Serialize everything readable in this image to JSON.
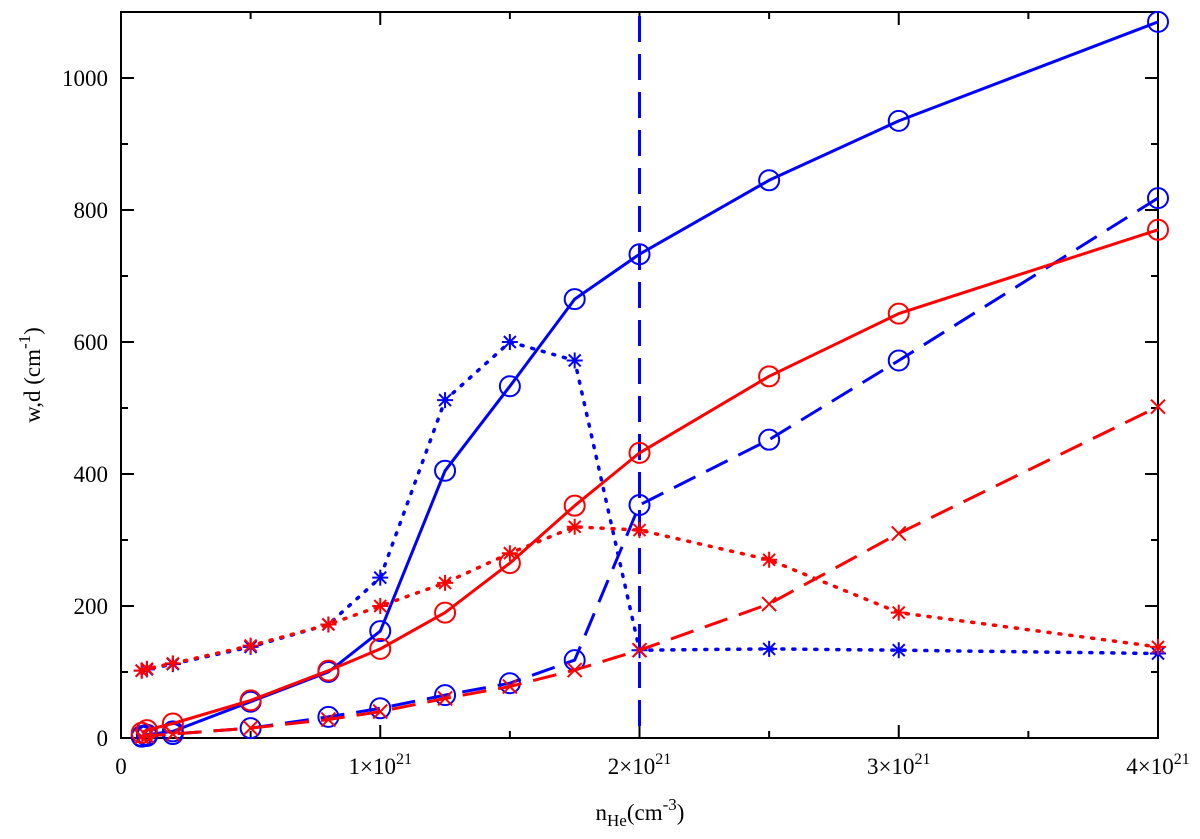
{
  "chart_data": {
    "type": "line",
    "title": "",
    "xlabel": {
      "base": "n",
      "sub": "He",
      "paren_open": "(cm",
      "sup": "-3",
      "paren_close": ")"
    },
    "ylabel": {
      "base": "w,d (cm",
      "sup": "-1",
      "paren_close": ")"
    },
    "xlim": [
      0,
      4e+21
    ],
    "ylim": [
      0,
      1100
    ],
    "x_ticks": [
      {
        "value": 0,
        "mant": "0",
        "exp": ""
      },
      {
        "value": 1e+21,
        "mant": "1×10",
        "exp": "21"
      },
      {
        "value": 2e+21,
        "mant": "2×10",
        "exp": "21"
      },
      {
        "value": 3e+21,
        "mant": "3×10",
        "exp": "21"
      },
      {
        "value": 4e+21,
        "mant": "4×10",
        "exp": "21"
      }
    ],
    "x_minor_ticks": [
      5e+20,
      1.5e+21,
      2.5e+21,
      3.5e+21
    ],
    "y_ticks": [
      0,
      200,
      400,
      600,
      800,
      1000
    ],
    "y_minor_ticks": [
      100,
      300,
      500,
      700,
      900
    ],
    "vline": {
      "x": 2e+21,
      "color": "#0000ff",
      "style": "dashed"
    },
    "series": [
      {
        "name": "blue-solid-circles",
        "color": "#0000ff",
        "line": "solid",
        "marker": "circle",
        "x": [
          8e+19,
          1e+20,
          2e+20,
          5e+20,
          8e+20,
          1e+21,
          1.25e+21,
          1.5e+21,
          1.75e+21,
          2e+21,
          2.5e+21,
          3e+21,
          4e+21
        ],
        "y": [
          3,
          5,
          10,
          55,
          100,
          162,
          405,
          533,
          665,
          733,
          845,
          935,
          1085
        ]
      },
      {
        "name": "blue-dashed-circles",
        "color": "#0000ff",
        "line": "dashed",
        "marker": "circle",
        "x": [
          8e+19,
          1e+20,
          2e+20,
          5e+20,
          8e+20,
          1e+21,
          1.25e+21,
          1.5e+21,
          1.75e+21,
          2e+21,
          2.5e+21,
          3e+21,
          4e+21
        ],
        "y": [
          2,
          3,
          6,
          15,
          32,
          45,
          65,
          83,
          118,
          353,
          452,
          572,
          818
        ]
      },
      {
        "name": "blue-dotted-stars",
        "color": "#0000ff",
        "line": "dotted",
        "marker": "star",
        "x": [
          8e+19,
          1e+20,
          2e+20,
          5e+20,
          8e+20,
          1e+21,
          1.25e+21,
          1.5e+21,
          1.75e+21,
          2e+21,
          2.5e+21,
          3e+21,
          4e+21
        ],
        "y": [
          102,
          104,
          112,
          138,
          172,
          243,
          512,
          600,
          572,
          133,
          135,
          133,
          128
        ]
      },
      {
        "name": "red-solid-circles",
        "color": "#ff0000",
        "line": "solid",
        "marker": "circle",
        "x": [
          8e+19,
          1e+20,
          2e+20,
          5e+20,
          8e+20,
          1e+21,
          1.25e+21,
          1.5e+21,
          1.75e+21,
          2e+21,
          2.5e+21,
          3e+21,
          4e+21
        ],
        "y": [
          8,
          12,
          22,
          57,
          102,
          135,
          190,
          265,
          352,
          432,
          548,
          643,
          770
        ]
      },
      {
        "name": "red-dashed-crosses",
        "color": "#ff0000",
        "line": "dashed",
        "marker": "cross",
        "x": [
          8e+19,
          1e+20,
          2e+20,
          5e+20,
          8e+20,
          1e+21,
          1.25e+21,
          1.5e+21,
          1.75e+21,
          2e+21,
          2.5e+21,
          3e+21,
          4e+21
        ],
        "y": [
          2,
          3,
          6,
          15,
          28,
          40,
          60,
          78,
          103,
          133,
          203,
          310,
          502
        ]
      },
      {
        "name": "red-dotted-stars",
        "color": "#ff0000",
        "line": "dotted",
        "marker": "star",
        "x": [
          8e+19,
          1e+20,
          2e+20,
          5e+20,
          8e+20,
          1e+21,
          1.25e+21,
          1.5e+21,
          1.75e+21,
          2e+21,
          2.5e+21,
          3e+21,
          4e+21
        ],
        "y": [
          102,
          105,
          113,
          140,
          172,
          200,
          235,
          280,
          320,
          315,
          270,
          190,
          138
        ]
      }
    ]
  }
}
